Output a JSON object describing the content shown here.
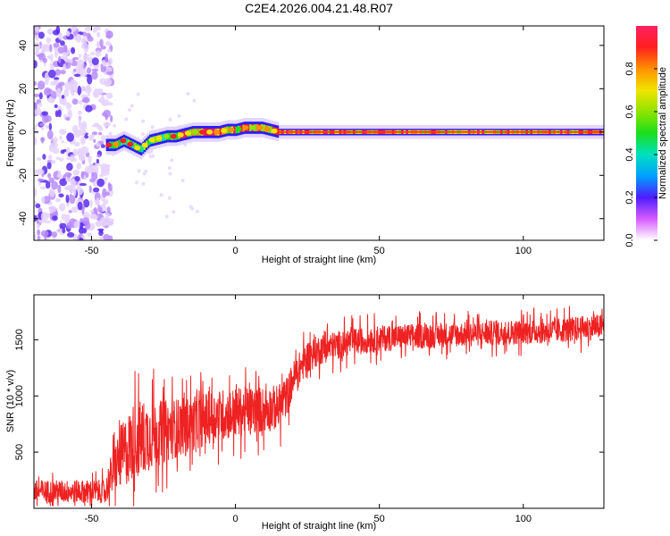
{
  "title": "C2E4.2026.004.21.48.R07",
  "chart_data": [
    {
      "type": "heatmap",
      "xlabel": "Height of straight line (km)",
      "ylabel": "Frequency (Hz)",
      "xlim": [
        -70,
        128
      ],
      "ylim": [
        -50,
        49
      ],
      "xticks": [
        -50,
        0,
        50,
        100
      ],
      "yticks": [
        -40,
        -20,
        0,
        20,
        40
      ],
      "track": {
        "x": [
          -60,
          -56,
          -52,
          -48,
          -45,
          -42,
          -39,
          -36,
          -33,
          -30,
          -27,
          -24,
          -21,
          -18,
          -15,
          -12,
          -9,
          -6,
          -3,
          0,
          3,
          6,
          9,
          12,
          15,
          20,
          40,
          60,
          80,
          100,
          128
        ],
        "freq": [
          -3,
          -3,
          -4,
          -5,
          -6,
          -6,
          -4,
          -6,
          -8,
          -4,
          -3,
          -2,
          -2,
          -1,
          0,
          0,
          0,
          0,
          1,
          1,
          2,
          2,
          2,
          1,
          0,
          0,
          0,
          0,
          0,
          0,
          0
        ]
      },
      "noise_region": [
        -70,
        -43
      ],
      "colorbar": {
        "label": "Normalized spectral amplitude",
        "ticks": [
          "0.0",
          "0.2",
          "0.4",
          "0.6",
          "0.8"
        ],
        "range": [
          0,
          1
        ]
      }
    },
    {
      "type": "line",
      "xlabel": "Height of straight line (km)",
      "ylabel": "SNR (10 * v/v)",
      "xlim": [
        -70,
        128
      ],
      "ylim": [
        0,
        1900
      ],
      "xticks": [
        -50,
        0,
        50,
        100
      ],
      "yticks": [
        500,
        1000,
        1500
      ],
      "series": [
        {
          "name": "SNR",
          "color": "#ee2222",
          "x": [
            -70,
            -45,
            -44,
            -40,
            -35,
            -30,
            -25,
            -20,
            -15,
            -10,
            -5,
            0,
            5,
            10,
            15,
            18,
            20,
            25,
            30,
            35,
            40,
            50,
            60,
            70,
            80,
            90,
            100,
            110,
            120,
            128
          ],
          "y": [
            150,
            150,
            250,
            450,
            600,
            650,
            680,
            720,
            750,
            800,
            830,
            850,
            870,
            880,
            900,
            1000,
            1150,
            1350,
            1420,
            1450,
            1480,
            1510,
            1530,
            1540,
            1550,
            1560,
            1570,
            1580,
            1600,
            1620
          ],
          "spread": [
            130,
            130,
            200,
            350,
            450,
            400,
            350,
            330,
            300,
            300,
            290,
            280,
            270,
            260,
            250,
            220,
            200,
            180,
            170,
            160,
            150,
            150,
            140,
            140,
            140,
            140,
            140,
            140,
            140,
            140
          ]
        }
      ]
    }
  ]
}
